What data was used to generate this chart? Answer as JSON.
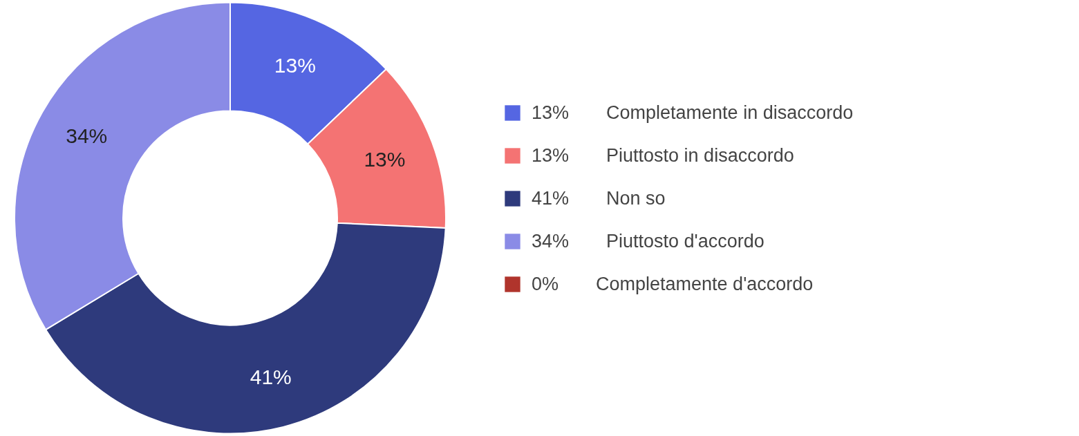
{
  "chart_data": {
    "type": "donut",
    "categories": [
      "Completamente in disaccordo",
      "Piuttosto in disaccordo",
      "Non so",
      "Piuttosto d'accordo",
      "Completamente d'accordo"
    ],
    "values": [
      13,
      13,
      41,
      34,
      0
    ],
    "value_labels": [
      "13%",
      "13%",
      "41%",
      "34%",
      "0%"
    ],
    "colors": [
      "#5566e2",
      "#f47373",
      "#2e3a7c",
      "#8a8be6",
      "#b0342c"
    ],
    "legend": "right"
  }
}
